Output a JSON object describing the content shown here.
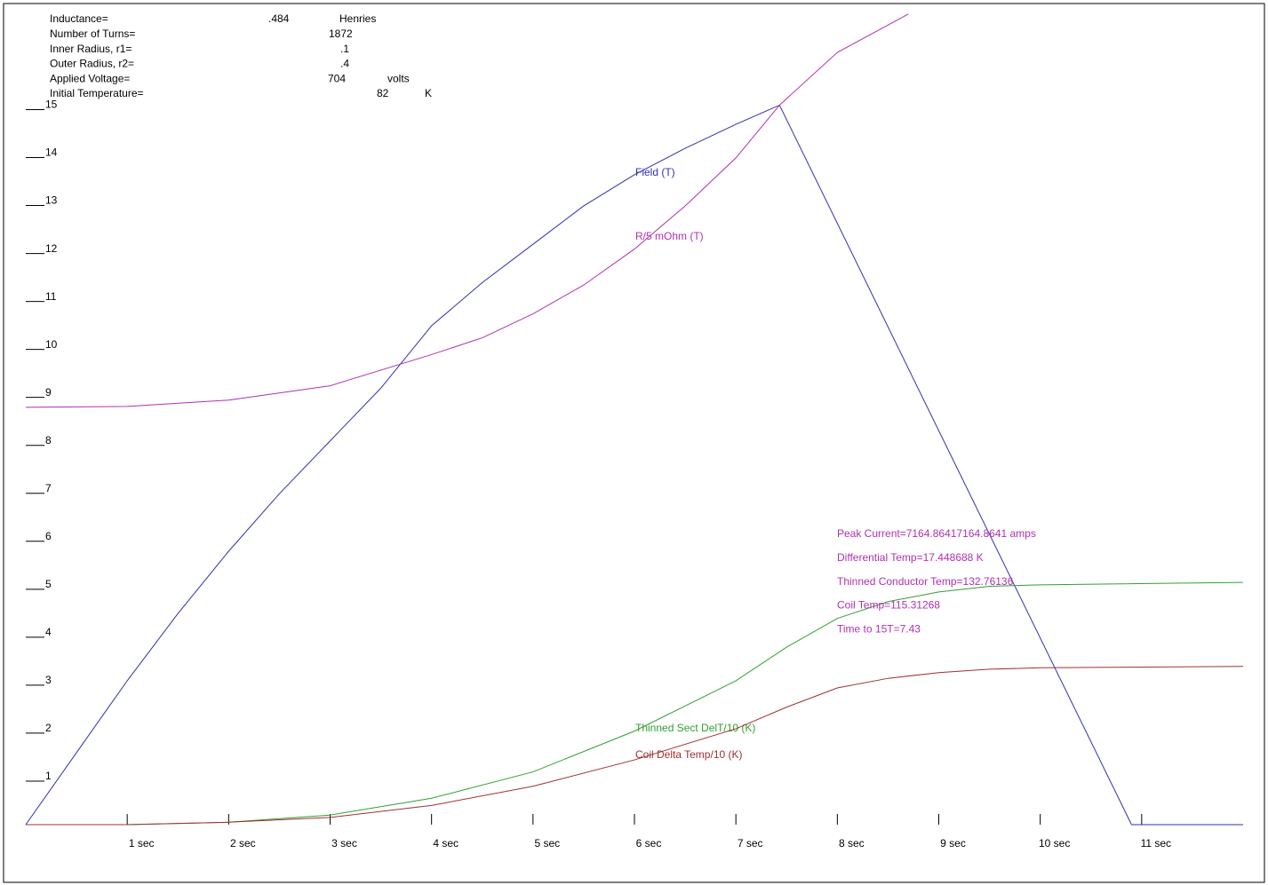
{
  "chart_data": {
    "type": "line",
    "parameters": [
      {
        "label": "Inductance=",
        "value": ".484",
        "unit": "Henries"
      },
      {
        "label": "Number of Turns=",
        "value": "1872"
      },
      {
        "label": "Inner Radius, r1=",
        "value": ".1"
      },
      {
        "label": "Outer Radius, r2=",
        "value": ".4"
      },
      {
        "label": "Applied Voltage=",
        "value": "704",
        "unit": "volts"
      },
      {
        "label": "Initial Temperature=",
        "value": "82",
        "unit": "K"
      }
    ],
    "annotations": [
      "Peak Current=7164.86417164.8641 amps",
      "Differential Temp=17.448688 K",
      "Thinned Conductor Temp=132.76136",
      "Coil Temp=115.31268",
      "Time to 15T=7.43"
    ],
    "xlim": [
      0,
      12
    ],
    "ylim": [
      0,
      17.1
    ],
    "xticks": [
      {
        "value": 1,
        "label": "1 sec"
      },
      {
        "value": 2,
        "label": "2 sec"
      },
      {
        "value": 3,
        "label": "3 sec"
      },
      {
        "value": 4,
        "label": "4 sec"
      },
      {
        "value": 5,
        "label": "5 sec"
      },
      {
        "value": 6,
        "label": "6 sec"
      },
      {
        "value": 7,
        "label": "7 sec"
      },
      {
        "value": 8,
        "label": "8 sec"
      },
      {
        "value": 9,
        "label": "9 sec"
      },
      {
        "value": 10,
        "label": "10 sec"
      },
      {
        "value": 11,
        "label": "11 sec"
      }
    ],
    "yticks": [
      1,
      2,
      3,
      4,
      5,
      6,
      7,
      8,
      9,
      10,
      11,
      12,
      13,
      14,
      15
    ],
    "series": [
      {
        "name": "Field (T)",
        "color": "#3030b0",
        "x": [
          0,
          0.5,
          1,
          1.5,
          2,
          2.5,
          3,
          3.5,
          4,
          4.5,
          5,
          5.5,
          6,
          6.5,
          7,
          7.43,
          10.9,
          12
        ],
        "values": [
          0,
          1.5,
          3.0,
          4.4,
          5.7,
          6.9,
          8.0,
          9.1,
          10.4,
          11.3,
          12.1,
          12.9,
          13.55,
          14.1,
          14.6,
          15,
          0,
          0
        ]
      },
      {
        "name": "R/5 mOhm (T)",
        "color": "#b030b0",
        "x": [
          0,
          1,
          2,
          3,
          4,
          4.5,
          5,
          5.5,
          6,
          6.5,
          7,
          7.43,
          8,
          8.7
        ],
        "values": [
          8.7,
          8.72,
          8.85,
          9.15,
          9.8,
          10.15,
          10.65,
          11.25,
          12.0,
          12.9,
          13.9,
          15.0,
          16.1,
          16.9
        ]
      },
      {
        "name": "Thinned Sect DelT/10 (K)",
        "color": "#30a030",
        "x": [
          0,
          1,
          2,
          3,
          4,
          5,
          6,
          7,
          7.5,
          8,
          8.5,
          9,
          9.5,
          10,
          12
        ],
        "values": [
          0,
          0,
          0.05,
          0.2,
          0.55,
          1.1,
          1.95,
          3.0,
          3.7,
          4.3,
          4.65,
          4.85,
          4.97,
          5.0,
          5.05
        ]
      },
      {
        "name": "Coil Delta Temp/10 (K)",
        "color": "#a03030",
        "x": [
          0,
          1,
          2,
          3,
          4,
          5,
          6,
          7,
          7.5,
          8,
          8.5,
          9,
          9.5,
          10,
          12
        ],
        "values": [
          0,
          0,
          0.05,
          0.15,
          0.4,
          0.8,
          1.35,
          2.0,
          2.45,
          2.85,
          3.05,
          3.17,
          3.24,
          3.27,
          3.3
        ]
      }
    ]
  }
}
